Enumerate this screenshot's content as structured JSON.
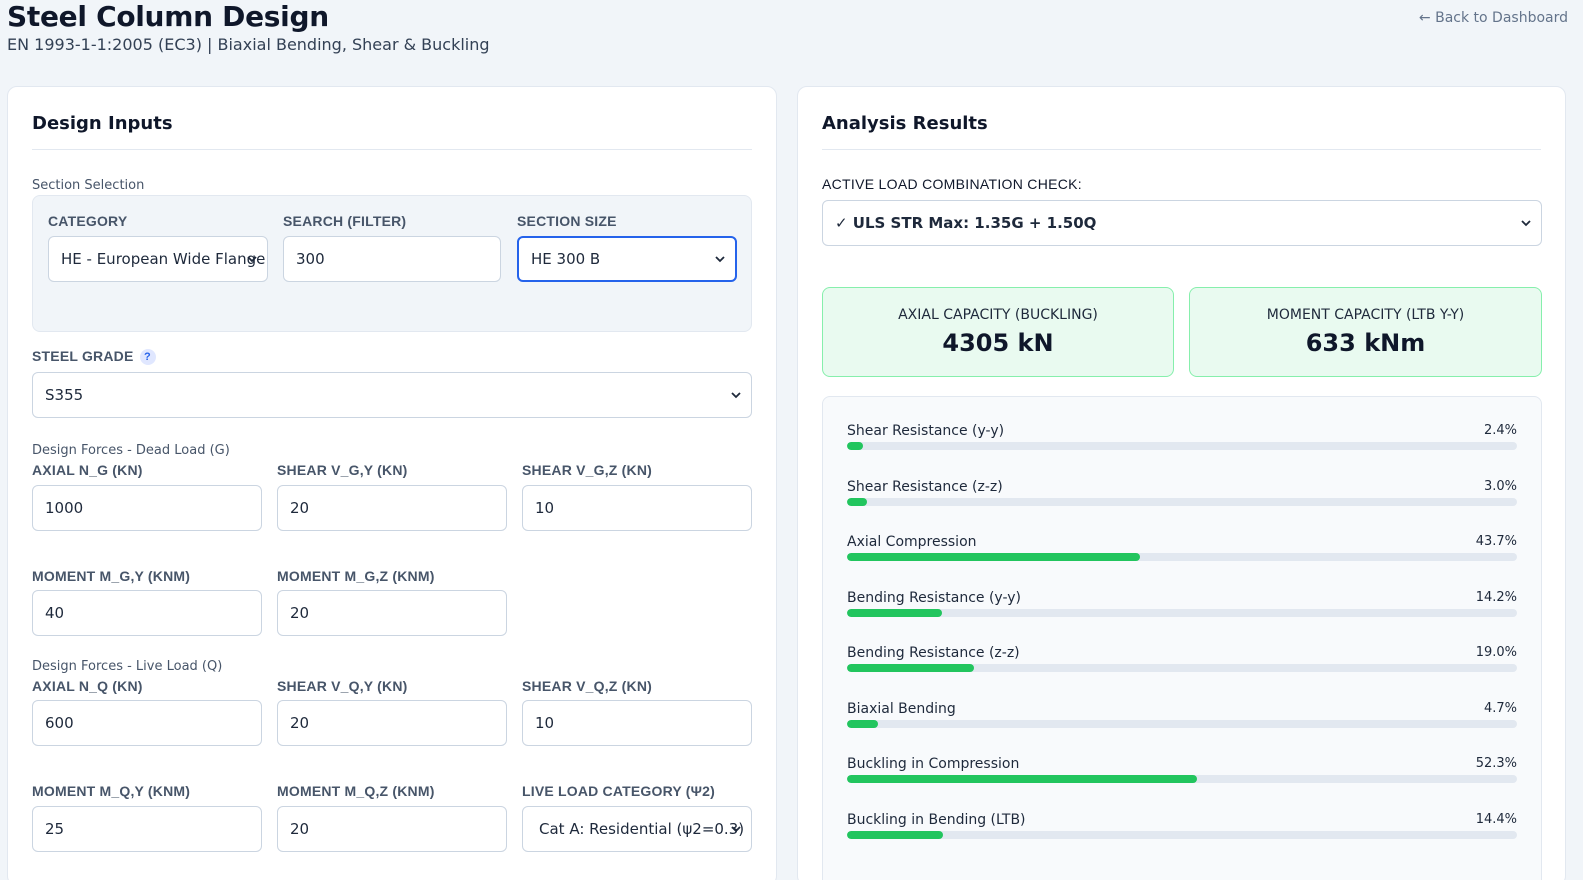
{
  "header": {
    "title": "Steel Column Design",
    "subtitle": "EN 1993-1-1:2005 (EC3) | Biaxial Bending, Shear & Buckling",
    "back_link": "← Back to Dashboard"
  },
  "inputs": {
    "title": "Design Inputs",
    "section_group": "Section Selection",
    "category": {
      "label": "CATEGORY",
      "value": "HE - European Wide Flange Beams"
    },
    "search": {
      "label": "SEARCH (FILTER)",
      "value": "300"
    },
    "section_size": {
      "label": "SECTION SIZE",
      "value": "HE 300 B"
    },
    "steel_grade": {
      "label": "STEEL GRADE",
      "help": "?",
      "value": "S355"
    },
    "dead_group": "Design Forces - Dead Load (G)",
    "dead": {
      "axial": {
        "label": "AXIAL N_G (KN)",
        "value": "1000"
      },
      "shear_y": {
        "label": "SHEAR V_G,Y (KN)",
        "value": "20"
      },
      "shear_z": {
        "label": "SHEAR V_G,Z (KN)",
        "value": "10"
      },
      "moment_y": {
        "label": "MOMENT M_G,Y (KNM)",
        "value": "40"
      },
      "moment_z": {
        "label": "MOMENT M_G,Z (KNM)",
        "value": "20"
      }
    },
    "live_group": "Design Forces - Live Load (Q)",
    "live": {
      "axial": {
        "label": "AXIAL N_Q (KN)",
        "value": "600"
      },
      "shear_y": {
        "label": "SHEAR V_Q,Y (KN)",
        "value": "20"
      },
      "shear_z": {
        "label": "SHEAR V_Q,Z (KN)",
        "value": "10"
      },
      "moment_y": {
        "label": "MOMENT M_Q,Y (KNM)",
        "value": "25"
      },
      "moment_z": {
        "label": "MOMENT M_Q,Z (KNM)",
        "value": "20"
      },
      "category": {
        "label": "LIVE LOAD CATEGORY (Ψ2)",
        "value": "Cat A: Residential (ψ2=0.3)"
      }
    }
  },
  "results": {
    "title": "Analysis Results",
    "combo_label": "ACTIVE LOAD COMBINATION CHECK:",
    "combo_value": "✓ ULS STR Max: 1.35G + 1.50Q",
    "kpis": [
      {
        "label": "AXIAL CAPACITY (BUCKLING)",
        "value": "4305 kN"
      },
      {
        "label": "MOMENT CAPACITY (LTB Y-Y)",
        "value": "633 kNm"
      }
    ],
    "utilization": [
      {
        "name": "Shear Resistance (y-y)",
        "pct_label": "2.4%",
        "pct": 2.4
      },
      {
        "name": "Shear Resistance (z-z)",
        "pct_label": "3.0%",
        "pct": 3.0
      },
      {
        "name": "Axial Compression",
        "pct_label": "43.7%",
        "pct": 43.7
      },
      {
        "name": "Bending Resistance (y-y)",
        "pct_label": "14.2%",
        "pct": 14.2
      },
      {
        "name": "Bending Resistance (z-z)",
        "pct_label": "19.0%",
        "pct": 19.0
      },
      {
        "name": "Biaxial Bending",
        "pct_label": "4.7%",
        "pct": 4.7
      },
      {
        "name": "Buckling in Compression",
        "pct_label": "52.3%",
        "pct": 52.3
      },
      {
        "name": "Buckling in Bending (LTB)",
        "pct_label": "14.4%",
        "pct": 14.4
      }
    ],
    "bar_color": "#22c55e"
  }
}
